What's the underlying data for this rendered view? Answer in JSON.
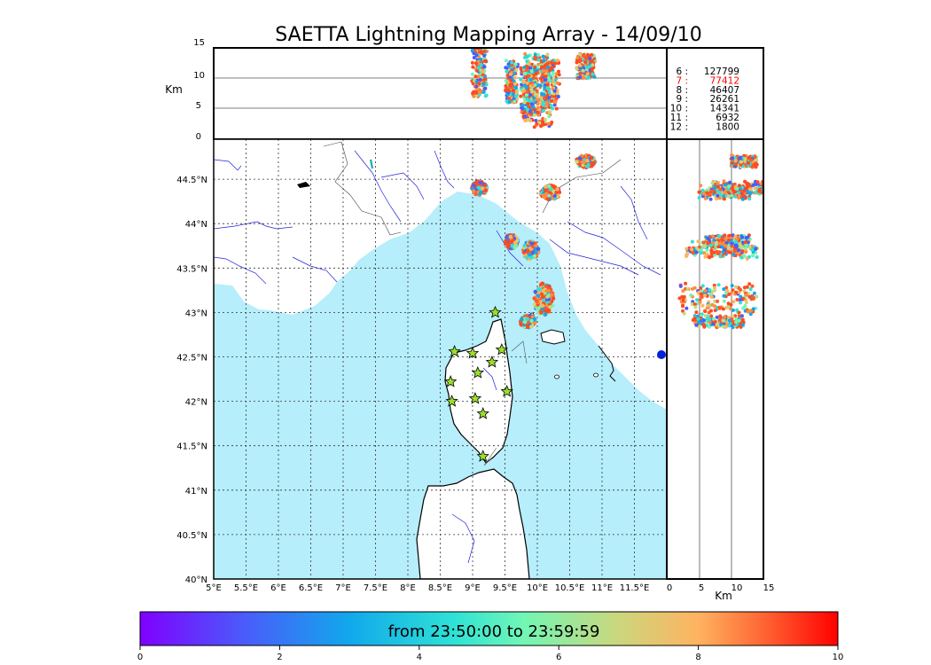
{
  "title": "SAETTA Lightning Mapping Array - 14/09/10",
  "map": {
    "lon_ticks": [
      "5°E",
      "5.5°E",
      "6°E",
      "6.5°E",
      "7°E",
      "7.5°E",
      "8°E",
      "8.5°E",
      "9°E",
      "9.5°E",
      "10°E",
      "10.5°E",
      "11°E",
      "11.5°E"
    ],
    "lat_ticks": [
      "40°N",
      "40.5°N",
      "41°N",
      "41.5°N",
      "42°N",
      "42.5°N",
      "43°N",
      "43.5°N",
      "44°N",
      "44.5°N"
    ],
    "lon_range": [
      5.0,
      12.0
    ],
    "lat_range": [
      40.0,
      44.95
    ],
    "sea_color": "#b6eefb",
    "land_color": "#ffffff",
    "river_color": "#2222dd",
    "station_color": "#9adf2b"
  },
  "height_panel": {
    "ylabel": "Km",
    "y_ticks": [
      "0",
      "5",
      "10",
      "15"
    ],
    "range": [
      0,
      15
    ]
  },
  "side_panel": {
    "xlabel": "Km",
    "x_ticks": [
      "0",
      "5",
      "10",
      "15"
    ],
    "range": [
      0,
      15
    ]
  },
  "counts": [
    {
      "minute": "6",
      "count": "127799",
      "color": "#000000"
    },
    {
      "minute": "7",
      "count": "77412",
      "color": "#ff0000"
    },
    {
      "minute": "8",
      "count": "46407",
      "color": "#000000"
    },
    {
      "minute": "9",
      "count": "26261",
      "color": "#000000"
    },
    {
      "minute": "10",
      "count": "14341",
      "color": "#000000"
    },
    {
      "minute": "11",
      "count": "6932",
      "color": "#000000"
    },
    {
      "minute": "12",
      "count": "1800",
      "color": "#000000"
    }
  ],
  "colorbar": {
    "label": "from 23:50:00 to 23:59:59",
    "ticks": [
      "0",
      "2",
      "4",
      "6",
      "8",
      "10"
    ],
    "range": [
      0,
      10
    ]
  },
  "stations": [
    {
      "lon": 9.35,
      "lat": 43.0
    },
    {
      "lon": 8.72,
      "lat": 42.56
    },
    {
      "lon": 9.0,
      "lat": 42.54
    },
    {
      "lon": 9.45,
      "lat": 42.58
    },
    {
      "lon": 9.3,
      "lat": 42.44
    },
    {
      "lon": 9.08,
      "lat": 42.32
    },
    {
      "lon": 8.66,
      "lat": 42.22
    },
    {
      "lon": 9.53,
      "lat": 42.11
    },
    {
      "lon": 8.68,
      "lat": 42.0
    },
    {
      "lon": 9.04,
      "lat": 42.03
    },
    {
      "lon": 9.16,
      "lat": 41.86
    },
    {
      "lon": 9.16,
      "lat": 41.38
    }
  ],
  "storm_cells": [
    {
      "lon": 9.1,
      "lat": 44.4,
      "rlon": 0.12,
      "rlat": 0.08,
      "alt": [
        7,
        15
      ]
    },
    {
      "lon": 9.6,
      "lat": 43.8,
      "rlon": 0.1,
      "rlat": 0.08,
      "alt": [
        6,
        13
      ]
    },
    {
      "lon": 9.9,
      "lat": 43.7,
      "rlon": 0.12,
      "rlat": 0.1,
      "alt": [
        3,
        14
      ]
    },
    {
      "lon": 10.1,
      "lat": 43.15,
      "rlon": 0.15,
      "rlat": 0.18,
      "alt": [
        2,
        14
      ]
    },
    {
      "lon": 9.85,
      "lat": 42.9,
      "rlon": 0.12,
      "rlat": 0.07,
      "alt": [
        4,
        12
      ]
    },
    {
      "lon": 10.2,
      "lat": 44.35,
      "rlon": 0.15,
      "rlat": 0.08,
      "alt": [
        5,
        13
      ]
    },
    {
      "lon": 10.75,
      "lat": 44.7,
      "rlon": 0.15,
      "rlat": 0.07,
      "alt": [
        10,
        14
      ]
    }
  ]
}
